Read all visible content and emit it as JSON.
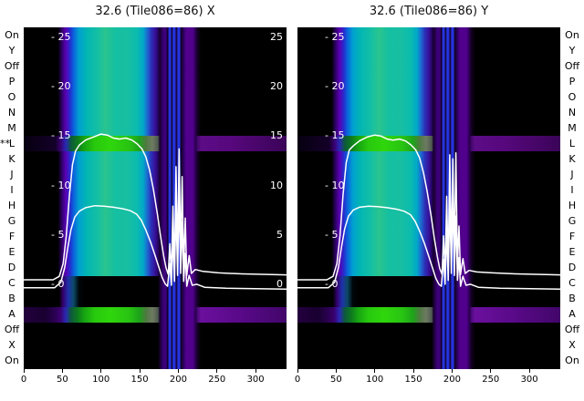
{
  "axes": {
    "row_labels": [
      "On",
      "Y",
      "Off",
      "P",
      "O",
      "N",
      "M",
      "L",
      "K",
      "J",
      "I",
      "H",
      "G",
      "F",
      "E",
      "D",
      "C",
      "B",
      "A",
      "Off",
      "X",
      "On"
    ],
    "marked_row_index": 7,
    "marked_row_label": "L",
    "marker": "**"
  },
  "colors": {
    "curve": "#ffffff",
    "background": "#000000",
    "blob_teal": "#17bfa6",
    "green_band": "#28c90e",
    "purple_band": "#50008c",
    "blue_line": "#2634e0"
  },
  "chart_data": [
    {
      "type": "heatmap",
      "overlay": "line",
      "title": "32.6 (Tile086=86) X",
      "x_range": [
        0,
        340
      ],
      "y_range": [
        -1.5,
        26.5
      ],
      "x_ticks": [
        0,
        50,
        100,
        150,
        200,
        250,
        300
      ],
      "y_ticks": [
        25,
        20,
        15,
        10,
        5,
        0
      ],
      "right_tick_labels": true,
      "bands": [
        {
          "row_start": 0,
          "row_count": 7,
          "kind": "blob"
        },
        {
          "row_start": 7,
          "row_count": 1,
          "kind": "green"
        },
        {
          "row_start": 8,
          "row_count": 8,
          "kind": "blob"
        },
        {
          "row_start": 16,
          "row_count": 2,
          "kind": "gap"
        },
        {
          "row_start": 18,
          "row_count": 1,
          "kind": "green2"
        },
        {
          "row_start": 19,
          "row_count": 3,
          "kind": "dark"
        }
      ],
      "series": [
        {
          "name": "curve-upper",
          "points": [
            [
              0,
              0.55
            ],
            [
              38,
              0.55
            ],
            [
              46,
              0.9
            ],
            [
              51,
              2.2
            ],
            [
              55,
              5.0
            ],
            [
              59,
              9.0
            ],
            [
              63,
              12.2
            ],
            [
              67,
              13.6
            ],
            [
              72,
              14.2
            ],
            [
              80,
              14.7
            ],
            [
              90,
              15.0
            ],
            [
              100,
              15.3
            ],
            [
              108,
              15.2
            ],
            [
              116,
              14.9
            ],
            [
              124,
              14.8
            ],
            [
              132,
              14.9
            ],
            [
              140,
              14.7
            ],
            [
              147,
              14.3
            ],
            [
              153,
              13.8
            ],
            [
              158,
              13.0
            ],
            [
              163,
              11.6
            ],
            [
              168,
              9.6
            ],
            [
              173,
              7.2
            ],
            [
              177,
              5.0
            ],
            [
              181,
              3.0
            ],
            [
              184,
              1.8
            ],
            [
              187,
              1.1
            ],
            [
              189,
              4.2
            ],
            [
              191,
              1.0
            ],
            [
              193,
              8.0
            ],
            [
              195,
              1.5
            ],
            [
              197,
              12.0
            ],
            [
              199,
              2.5
            ],
            [
              201,
              13.8
            ],
            [
              203,
              3.0
            ],
            [
              205,
              11.0
            ],
            [
              207,
              1.6
            ],
            [
              209,
              6.8
            ],
            [
              211,
              1.0
            ],
            [
              214,
              3.0
            ],
            [
              217,
              1.2
            ],
            [
              222,
              1.6
            ],
            [
              232,
              1.4
            ],
            [
              252,
              1.25
            ],
            [
              282,
              1.15
            ],
            [
              342,
              1.05
            ]
          ]
        },
        {
          "name": "curve-lower",
          "points": [
            [
              0,
              -0.25
            ],
            [
              40,
              -0.25
            ],
            [
              48,
              0.3
            ],
            [
              53,
              1.8
            ],
            [
              57,
              3.8
            ],
            [
              61,
              5.6
            ],
            [
              66,
              6.9
            ],
            [
              72,
              7.5
            ],
            [
              80,
              7.85
            ],
            [
              92,
              8.05
            ],
            [
              104,
              8.0
            ],
            [
              116,
              7.9
            ],
            [
              128,
              7.75
            ],
            [
              138,
              7.55
            ],
            [
              146,
              7.2
            ],
            [
              152,
              6.6
            ],
            [
              158,
              5.6
            ],
            [
              164,
              4.4
            ],
            [
              170,
              3.0
            ],
            [
              175,
              1.8
            ],
            [
              179,
              0.8
            ],
            [
              183,
              0.15
            ],
            [
              186,
              -0.1
            ],
            [
              189,
              2.2
            ],
            [
              191,
              0.0
            ],
            [
              193,
              5.0
            ],
            [
              195,
              0.4
            ],
            [
              197,
              7.8
            ],
            [
              199,
              1.0
            ],
            [
              201,
              9.2
            ],
            [
              203,
              1.2
            ],
            [
              205,
              6.4
            ],
            [
              207,
              0.4
            ],
            [
              209,
              3.2
            ],
            [
              211,
              -0.1
            ],
            [
              214,
              1.0
            ],
            [
              218,
              0.0
            ],
            [
              224,
              0.1
            ],
            [
              234,
              -0.2
            ],
            [
              262,
              -0.3
            ],
            [
              342,
              -0.4
            ]
          ]
        }
      ]
    },
    {
      "type": "heatmap",
      "overlay": "line",
      "title": "32.6 (Tile086=86) Y",
      "x_range": [
        0,
        340
      ],
      "y_range": [
        -1.5,
        26.5
      ],
      "x_ticks": [
        0,
        50,
        100,
        150,
        200,
        250,
        300
      ],
      "y_ticks": [
        25,
        20,
        15,
        10,
        5,
        0
      ],
      "right_tick_labels": false,
      "bands": [
        {
          "row_start": 0,
          "row_count": 7,
          "kind": "blob"
        },
        {
          "row_start": 7,
          "row_count": 1,
          "kind": "green"
        },
        {
          "row_start": 8,
          "row_count": 8,
          "kind": "blob"
        },
        {
          "row_start": 16,
          "row_count": 2,
          "kind": "gap"
        },
        {
          "row_start": 18,
          "row_count": 1,
          "kind": "green2"
        },
        {
          "row_start": 19,
          "row_count": 3,
          "kind": "dark"
        }
      ],
      "series": [
        {
          "name": "curve-upper",
          "points": [
            [
              0,
              0.55
            ],
            [
              38,
              0.55
            ],
            [
              46,
              0.9
            ],
            [
              51,
              2.2
            ],
            [
              55,
              5.0
            ],
            [
              59,
              9.2
            ],
            [
              63,
              12.4
            ],
            [
              67,
              13.7
            ],
            [
              72,
              14.1
            ],
            [
              80,
              14.6
            ],
            [
              90,
              15.0
            ],
            [
              100,
              15.2
            ],
            [
              108,
              15.1
            ],
            [
              116,
              14.8
            ],
            [
              124,
              14.7
            ],
            [
              132,
              14.8
            ],
            [
              140,
              14.6
            ],
            [
              147,
              14.2
            ],
            [
              153,
              13.7
            ],
            [
              158,
              12.9
            ],
            [
              163,
              11.4
            ],
            [
              168,
              9.4
            ],
            [
              173,
              7.0
            ],
            [
              177,
              4.8
            ],
            [
              181,
              2.9
            ],
            [
              184,
              1.7
            ],
            [
              187,
              1.1
            ],
            [
              189,
              5.0
            ],
            [
              191,
              1.3
            ],
            [
              193,
              9.0
            ],
            [
              195,
              1.8
            ],
            [
              197,
              13.2
            ],
            [
              199,
              3.0
            ],
            [
              201,
              12.8
            ],
            [
              203,
              2.6
            ],
            [
              205,
              13.4
            ],
            [
              207,
              2.0
            ],
            [
              209,
              6.0
            ],
            [
              211,
              1.1
            ],
            [
              214,
              2.7
            ],
            [
              217,
              1.2
            ],
            [
              222,
              1.5
            ],
            [
              232,
              1.35
            ],
            [
              252,
              1.25
            ],
            [
              282,
              1.15
            ],
            [
              342,
              1.05
            ]
          ]
        },
        {
          "name": "curve-lower",
          "points": [
            [
              0,
              -0.25
            ],
            [
              40,
              -0.25
            ],
            [
              48,
              0.3
            ],
            [
              53,
              1.8
            ],
            [
              57,
              3.9
            ],
            [
              61,
              5.7
            ],
            [
              66,
              7.0
            ],
            [
              72,
              7.6
            ],
            [
              80,
              7.9
            ],
            [
              92,
              8.0
            ],
            [
              104,
              7.95
            ],
            [
              116,
              7.85
            ],
            [
              128,
              7.7
            ],
            [
              138,
              7.5
            ],
            [
              146,
              7.15
            ],
            [
              152,
              6.5
            ],
            [
              158,
              5.5
            ],
            [
              164,
              4.3
            ],
            [
              170,
              2.9
            ],
            [
              175,
              1.7
            ],
            [
              179,
              0.7
            ],
            [
              183,
              0.1
            ],
            [
              186,
              -0.1
            ],
            [
              189,
              2.6
            ],
            [
              191,
              0.1
            ],
            [
              193,
              5.6
            ],
            [
              195,
              0.5
            ],
            [
              197,
              8.4
            ],
            [
              199,
              1.2
            ],
            [
              201,
              8.8
            ],
            [
              203,
              1.0
            ],
            [
              205,
              7.0
            ],
            [
              207,
              0.5
            ],
            [
              209,
              2.8
            ],
            [
              211,
              -0.1
            ],
            [
              214,
              0.9
            ],
            [
              218,
              0.0
            ],
            [
              224,
              0.1
            ],
            [
              234,
              -0.2
            ],
            [
              262,
              -0.3
            ],
            [
              342,
              -0.4
            ]
          ]
        }
      ]
    }
  ]
}
